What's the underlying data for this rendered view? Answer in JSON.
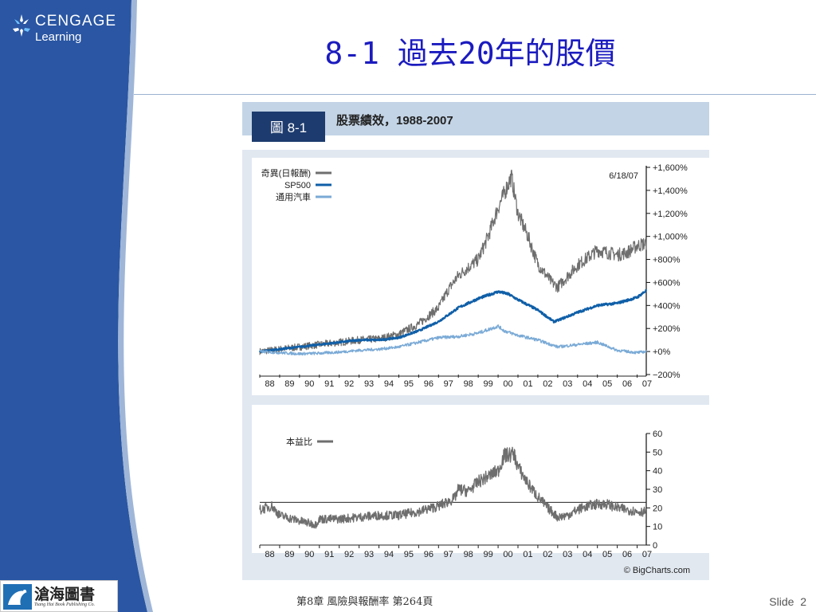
{
  "header": {
    "logo_line1": "CENGAGE",
    "logo_line2": "Learning",
    "title": "8-1 過去20年的股價"
  },
  "figure": {
    "badge": "圖 8-1",
    "caption": "股票績效，1988-2007",
    "date_label": "6/18/07",
    "source": "© BigCharts.com"
  },
  "chart_data": [
    {
      "type": "line",
      "title": "",
      "ylabel": "",
      "x_tick_labels": [
        "88",
        "89",
        "90",
        "91",
        "92",
        "93",
        "94",
        "95",
        "96",
        "97",
        "98",
        "99",
        "00",
        "01",
        "02",
        "03",
        "04",
        "05",
        "06",
        "07"
      ],
      "y_tick_labels": [
        "+1,600%",
        "+1,400%",
        "+1,200%",
        "+1,000%",
        "+800%",
        "+600%",
        "+400%",
        "+200%",
        "+0%",
        "−200%"
      ],
      "ylim": [
        -200,
        1600
      ],
      "legend_position": "top-left",
      "series": [
        {
          "name": "奇異(日報酬)",
          "color": "#6e6e6e",
          "x": [
            1988,
            1989,
            1990,
            1991,
            1992,
            1993,
            1994,
            1995,
            1996,
            1997,
            1997.5,
            1998,
            1999,
            1999.5,
            2000,
            2000.67,
            2001,
            2001.5,
            2002,
            2002.7,
            2003,
            2004,
            2005,
            2006,
            2006.5,
            2007,
            2007.46
          ],
          "y": [
            0,
            20,
            40,
            60,
            80,
            100,
            110,
            150,
            240,
            380,
            540,
            660,
            800,
            1000,
            1250,
            1520,
            1200,
            1000,
            760,
            600,
            560,
            750,
            880,
            840,
            860,
            920,
            940
          ]
        },
        {
          "name": "SP500",
          "color": "#0f5fa8",
          "x": [
            1988,
            1989,
            1990,
            1991,
            1992,
            1993,
            1994,
            1995,
            1996,
            1997,
            1998,
            1999,
            2000,
            2000.5,
            2001,
            2002,
            2002.8,
            2003,
            2004,
            2005,
            2006,
            2007,
            2007.46
          ],
          "y": [
            0,
            20,
            40,
            60,
            80,
            100,
            100,
            120,
            180,
            260,
            380,
            460,
            520,
            500,
            450,
            360,
            260,
            270,
            340,
            400,
            420,
            470,
            530
          ]
        },
        {
          "name": "通用汽車",
          "color": "#7aaad6",
          "x": [
            1988,
            1989,
            1990,
            1991,
            1992,
            1993,
            1994,
            1995,
            1996,
            1997,
            1998,
            1999,
            2000,
            2000.3,
            2001,
            2002,
            2003,
            2004,
            2005,
            2006,
            2007,
            2007.46
          ],
          "y": [
            0,
            -10,
            -20,
            -15,
            -5,
            10,
            20,
            40,
            80,
            120,
            130,
            160,
            220,
            180,
            140,
            100,
            40,
            60,
            80,
            10,
            -10,
            0
          ]
        }
      ]
    },
    {
      "type": "line",
      "title": "",
      "ylabel": "",
      "x_tick_labels": [
        "88",
        "89",
        "90",
        "91",
        "92",
        "93",
        "94",
        "95",
        "96",
        "97",
        "98",
        "99",
        "00",
        "01",
        "02",
        "03",
        "04",
        "05",
        "06",
        "07"
      ],
      "y_tick_labels": [
        "60",
        "50",
        "40",
        "30",
        "20",
        "10",
        "0"
      ],
      "ylim": [
        0,
        60
      ],
      "reference_line": 23,
      "legend_position": "top-left",
      "series": [
        {
          "name": "本益比",
          "color": "#6e6e6e",
          "x": [
            1988,
            1988.6,
            1989,
            1990,
            1990.8,
            1991,
            1992,
            1993,
            1994,
            1995,
            1996,
            1997,
            1997.8,
            1998,
            1998.5,
            1999,
            1999.5,
            2000,
            2000.3,
            2000.8,
            2001,
            2001.5,
            2002,
            2002.5,
            2003,
            2003.5,
            2004,
            2004.5,
            2005,
            2005.5,
            2006,
            2007,
            2007.46
          ],
          "y": [
            19,
            21,
            16,
            13,
            11,
            14,
            14,
            15,
            16,
            16,
            18,
            21,
            25,
            30,
            29,
            34,
            37,
            40,
            48,
            49,
            42,
            33,
            26,
            20,
            15,
            16,
            19,
            21,
            22,
            22,
            20,
            18,
            18
          ]
        }
      ]
    }
  ],
  "footer": {
    "publisher_name": "滄海圖書",
    "publisher_sub": "Tsang Hai Book Publishing Co.",
    "chapter_text": "第8章 風險與報酬率 第264頁",
    "slide_label": "Slide",
    "slide_number": "2"
  },
  "colors": {
    "brand_blue": "#2a56a3",
    "title_blue": "#1b1bbf",
    "figure_bg": "#e1e8f0",
    "caption_bar": "#c3d4e6",
    "badge_bg": "#1d3b6e"
  }
}
